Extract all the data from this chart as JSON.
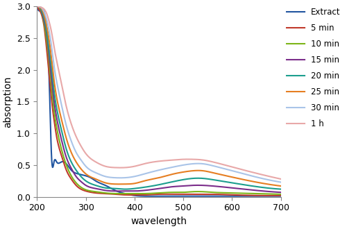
{
  "title": "",
  "xlabel": "wavelength",
  "ylabel": "absorption",
  "xlim": [
    200,
    700
  ],
  "ylim": [
    0,
    3
  ],
  "yticks": [
    0,
    0.5,
    1.0,
    1.5,
    2.0,
    2.5,
    3.0
  ],
  "xticks": [
    200,
    300,
    400,
    500,
    600,
    700
  ],
  "series": [
    {
      "label": "Extract",
      "color": "#2155A0",
      "points": [
        [
          200,
          3.0
        ],
        [
          215,
          2.9
        ],
        [
          220,
          2.6
        ],
        [
          225,
          1.8
        ],
        [
          230,
          0.58
        ],
        [
          235,
          0.56
        ],
        [
          240,
          0.55
        ],
        [
          250,
          0.55
        ],
        [
          260,
          0.52
        ],
        [
          270,
          0.42
        ],
        [
          280,
          0.37
        ],
        [
          290,
          0.35
        ],
        [
          300,
          0.33
        ],
        [
          310,
          0.3
        ],
        [
          320,
          0.25
        ],
        [
          340,
          0.18
        ],
        [
          360,
          0.1
        ],
        [
          380,
          0.05
        ],
        [
          400,
          0.02
        ],
        [
          420,
          0.01
        ],
        [
          450,
          0.01
        ],
        [
          500,
          0.01
        ],
        [
          550,
          0.01
        ],
        [
          600,
          0.01
        ],
        [
          650,
          0.01
        ],
        [
          700,
          0.01
        ]
      ]
    },
    {
      "label": "5 min",
      "color": "#C0392B",
      "points": [
        [
          200,
          3.0
        ],
        [
          210,
          2.85
        ],
        [
          215,
          2.65
        ],
        [
          220,
          2.3
        ],
        [
          225,
          1.9
        ],
        [
          230,
          1.5
        ],
        [
          235,
          1.2
        ],
        [
          240,
          0.95
        ],
        [
          250,
          0.65
        ],
        [
          260,
          0.42
        ],
        [
          270,
          0.28
        ],
        [
          280,
          0.18
        ],
        [
          290,
          0.12
        ],
        [
          300,
          0.09
        ],
        [
          320,
          0.06
        ],
        [
          340,
          0.05
        ],
        [
          360,
          0.04
        ],
        [
          380,
          0.03
        ],
        [
          400,
          0.03
        ],
        [
          420,
          0.03
        ],
        [
          450,
          0.04
        ],
        [
          480,
          0.04
        ],
        [
          500,
          0.04
        ],
        [
          520,
          0.04
        ],
        [
          540,
          0.04
        ],
        [
          560,
          0.04
        ],
        [
          600,
          0.03
        ],
        [
          650,
          0.02
        ],
        [
          700,
          0.02
        ]
      ]
    },
    {
      "label": "10 min",
      "color": "#7CB518",
      "points": [
        [
          200,
          3.0
        ],
        [
          210,
          2.88
        ],
        [
          215,
          2.7
        ],
        [
          220,
          2.45
        ],
        [
          225,
          2.1
        ],
        [
          230,
          1.7
        ],
        [
          235,
          1.35
        ],
        [
          240,
          1.1
        ],
        [
          250,
          0.75
        ],
        [
          260,
          0.5
        ],
        [
          270,
          0.33
        ],
        [
          280,
          0.22
        ],
        [
          290,
          0.15
        ],
        [
          300,
          0.11
        ],
        [
          320,
          0.08
        ],
        [
          340,
          0.06
        ],
        [
          360,
          0.05
        ],
        [
          380,
          0.05
        ],
        [
          400,
          0.05
        ],
        [
          420,
          0.05
        ],
        [
          450,
          0.06
        ],
        [
          480,
          0.07
        ],
        [
          500,
          0.07
        ],
        [
          520,
          0.08
        ],
        [
          540,
          0.08
        ],
        [
          560,
          0.07
        ],
        [
          600,
          0.06
        ],
        [
          650,
          0.05
        ],
        [
          700,
          0.04
        ]
      ]
    },
    {
      "label": "15 min",
      "color": "#7B2D8B",
      "points": [
        [
          200,
          3.0
        ],
        [
          210,
          2.9
        ],
        [
          215,
          2.75
        ],
        [
          220,
          2.55
        ],
        [
          225,
          2.2
        ],
        [
          230,
          1.85
        ],
        [
          235,
          1.5
        ],
        [
          240,
          1.25
        ],
        [
          250,
          0.9
        ],
        [
          260,
          0.62
        ],
        [
          270,
          0.45
        ],
        [
          280,
          0.32
        ],
        [
          290,
          0.24
        ],
        [
          300,
          0.18
        ],
        [
          320,
          0.13
        ],
        [
          340,
          0.1
        ],
        [
          360,
          0.09
        ],
        [
          380,
          0.09
        ],
        [
          400,
          0.09
        ],
        [
          420,
          0.1
        ],
        [
          450,
          0.13
        ],
        [
          480,
          0.16
        ],
        [
          500,
          0.17
        ],
        [
          520,
          0.18
        ],
        [
          540,
          0.18
        ],
        [
          560,
          0.17
        ],
        [
          600,
          0.14
        ],
        [
          650,
          0.1
        ],
        [
          700,
          0.07
        ]
      ]
    },
    {
      "label": "20 min",
      "color": "#1C9E8E",
      "points": [
        [
          200,
          3.0
        ],
        [
          210,
          2.92
        ],
        [
          215,
          2.8
        ],
        [
          220,
          2.6
        ],
        [
          225,
          2.3
        ],
        [
          230,
          2.0
        ],
        [
          235,
          1.65
        ],
        [
          240,
          1.4
        ],
        [
          250,
          1.05
        ],
        [
          260,
          0.75
        ],
        [
          270,
          0.55
        ],
        [
          280,
          0.42
        ],
        [
          290,
          0.32
        ],
        [
          300,
          0.25
        ],
        [
          320,
          0.18
        ],
        [
          340,
          0.14
        ],
        [
          360,
          0.13
        ],
        [
          380,
          0.12
        ],
        [
          400,
          0.13
        ],
        [
          420,
          0.15
        ],
        [
          450,
          0.19
        ],
        [
          480,
          0.24
        ],
        [
          500,
          0.27
        ],
        [
          520,
          0.29
        ],
        [
          540,
          0.29
        ],
        [
          560,
          0.27
        ],
        [
          600,
          0.22
        ],
        [
          650,
          0.16
        ],
        [
          700,
          0.12
        ]
      ]
    },
    {
      "label": "25 min",
      "color": "#E67E22",
      "points": [
        [
          200,
          3.0
        ],
        [
          210,
          2.95
        ],
        [
          215,
          2.85
        ],
        [
          220,
          2.68
        ],
        [
          225,
          2.45
        ],
        [
          230,
          2.15
        ],
        [
          235,
          1.82
        ],
        [
          240,
          1.57
        ],
        [
          250,
          1.22
        ],
        [
          260,
          0.92
        ],
        [
          270,
          0.7
        ],
        [
          280,
          0.55
        ],
        [
          290,
          0.44
        ],
        [
          300,
          0.36
        ],
        [
          320,
          0.28
        ],
        [
          340,
          0.22
        ],
        [
          360,
          0.2
        ],
        [
          380,
          0.2
        ],
        [
          400,
          0.21
        ],
        [
          420,
          0.25
        ],
        [
          450,
          0.3
        ],
        [
          480,
          0.36
        ],
        [
          500,
          0.39
        ],
        [
          520,
          0.41
        ],
        [
          540,
          0.41
        ],
        [
          560,
          0.38
        ],
        [
          600,
          0.31
        ],
        [
          650,
          0.23
        ],
        [
          700,
          0.17
        ]
      ]
    },
    {
      "label": "30 min",
      "color": "#A9C4E8",
      "points": [
        [
          200,
          3.0
        ],
        [
          210,
          2.97
        ],
        [
          215,
          2.9
        ],
        [
          220,
          2.78
        ],
        [
          225,
          2.6
        ],
        [
          230,
          2.35
        ],
        [
          235,
          2.05
        ],
        [
          240,
          1.82
        ],
        [
          250,
          1.45
        ],
        [
          260,
          1.12
        ],
        [
          270,
          0.88
        ],
        [
          280,
          0.7
        ],
        [
          290,
          0.58
        ],
        [
          300,
          0.48
        ],
        [
          320,
          0.38
        ],
        [
          340,
          0.32
        ],
        [
          360,
          0.3
        ],
        [
          380,
          0.3
        ],
        [
          400,
          0.32
        ],
        [
          420,
          0.36
        ],
        [
          450,
          0.42
        ],
        [
          480,
          0.47
        ],
        [
          500,
          0.5
        ],
        [
          520,
          0.52
        ],
        [
          540,
          0.52
        ],
        [
          560,
          0.49
        ],
        [
          600,
          0.41
        ],
        [
          650,
          0.31
        ],
        [
          700,
          0.23
        ]
      ]
    },
    {
      "label": "1 h",
      "color": "#E8A8A8",
      "points": [
        [
          200,
          3.0
        ],
        [
          210,
          2.98
        ],
        [
          215,
          2.95
        ],
        [
          220,
          2.88
        ],
        [
          225,
          2.75
        ],
        [
          230,
          2.58
        ],
        [
          235,
          2.35
        ],
        [
          240,
          2.15
        ],
        [
          250,
          1.78
        ],
        [
          260,
          1.42
        ],
        [
          270,
          1.15
        ],
        [
          280,
          0.95
        ],
        [
          290,
          0.8
        ],
        [
          300,
          0.68
        ],
        [
          320,
          0.55
        ],
        [
          340,
          0.48
        ],
        [
          360,
          0.46
        ],
        [
          380,
          0.46
        ],
        [
          400,
          0.48
        ],
        [
          420,
          0.52
        ],
        [
          450,
          0.56
        ],
        [
          480,
          0.58
        ],
        [
          500,
          0.59
        ],
        [
          520,
          0.59
        ],
        [
          540,
          0.58
        ],
        [
          560,
          0.55
        ],
        [
          600,
          0.47
        ],
        [
          650,
          0.37
        ],
        [
          700,
          0.28
        ]
      ]
    }
  ],
  "background_color": "#ffffff",
  "legend_fontsize": 8.5,
  "axis_fontsize": 10,
  "tick_fontsize": 9,
  "linewidth": 1.5,
  "figsize": [
    5.0,
    3.3
  ],
  "dpi": 100
}
